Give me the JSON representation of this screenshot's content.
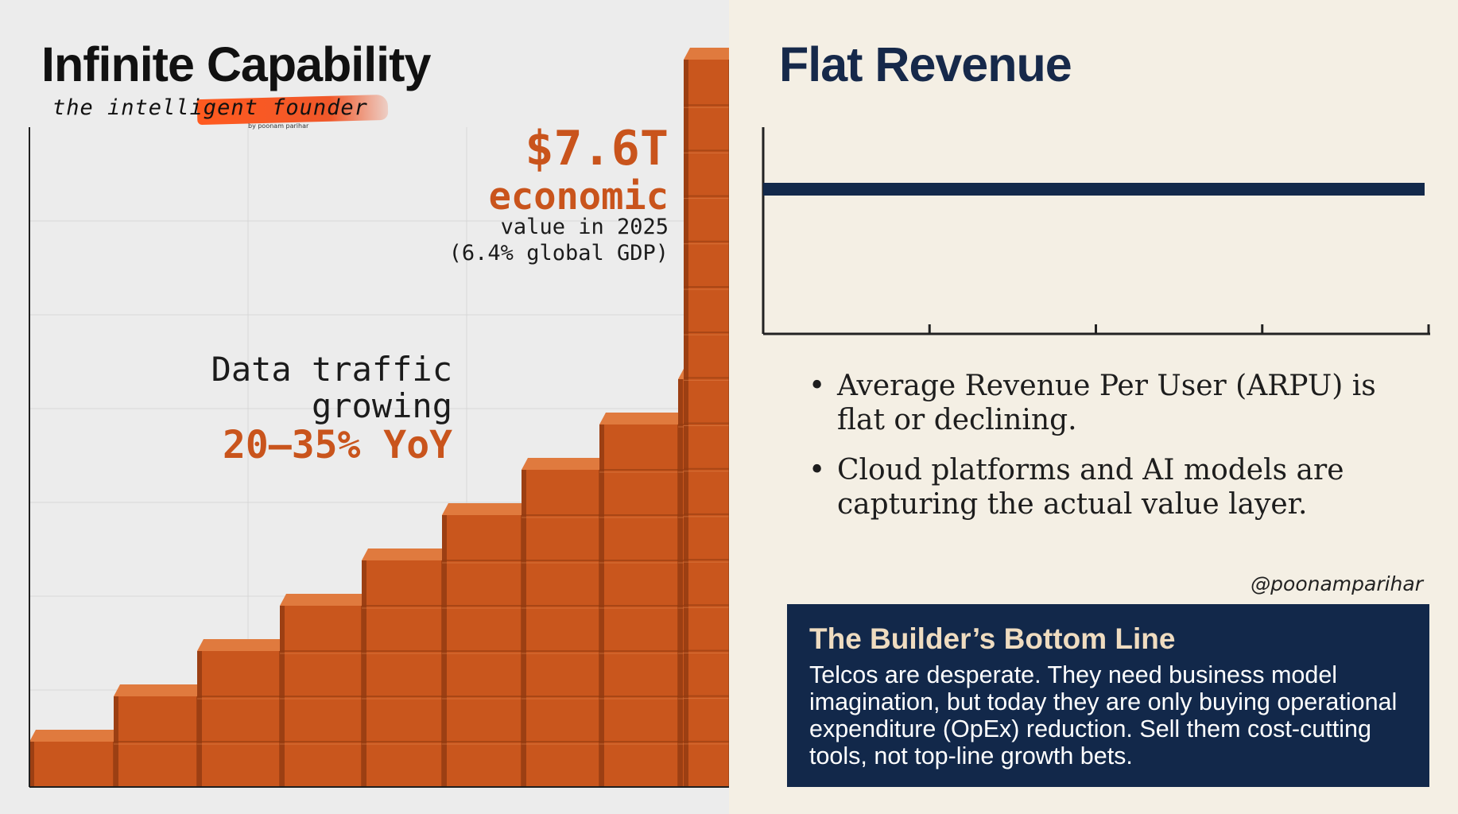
{
  "left": {
    "title": "Infinite Capability",
    "brand_text": "the intelligent founder",
    "brand_sub": "by poonam parihar",
    "economic_value": "$7.6T",
    "economic_label": "economic",
    "economic_line1": "value in 2025",
    "economic_line2": "(6.4% global GDP)",
    "traffic_line1": "Data traffic",
    "traffic_line2": "growing",
    "traffic_rate": "20–35% YoY"
  },
  "right": {
    "title": "Flat Revenue",
    "bullets": [
      "Average Revenue Per User (ARPU) is flat or declining.",
      "Cloud platforms and AI models are capturing the actual value layer."
    ],
    "bullet_symbol": "•",
    "handle": "@poonamparihar",
    "bottom_title": "The Builder’s Bottom Line",
    "bottom_body": "Telcos are desperate. They need business model imagination, but today they are only buying operational expenditure (OpEx) reduction. Sell them cost-cutting tools, not top-line growth bets."
  },
  "chart_data": [
    {
      "type": "bar",
      "title": "Infinite Capability",
      "series": [
        {
          "name": "Capability",
          "values": [
            1,
            2,
            3,
            4,
            5,
            6,
            7,
            8,
            9,
            16
          ]
        }
      ],
      "ylim": [
        0,
        16
      ],
      "grid": true,
      "annotations": [
        "$7.6T economic value in 2025 (6.4% global GDP)",
        "Data traffic growing 20–35% YoY"
      ],
      "colors": {
        "bar_front": "#c9561d",
        "bar_top": "#e07a3e",
        "bar_side": "#9c3f13",
        "axis": "#1f1f1f",
        "grid": "#d7d7d7"
      }
    },
    {
      "type": "line",
      "title": "Flat Revenue",
      "series": [
        {
          "name": "Revenue",
          "values": [
            1,
            1,
            1,
            1,
            1
          ]
        }
      ],
      "ylim": [
        0,
        2
      ],
      "grid": false,
      "colors": {
        "line": "#13294a",
        "axis": "#222222"
      }
    }
  ]
}
